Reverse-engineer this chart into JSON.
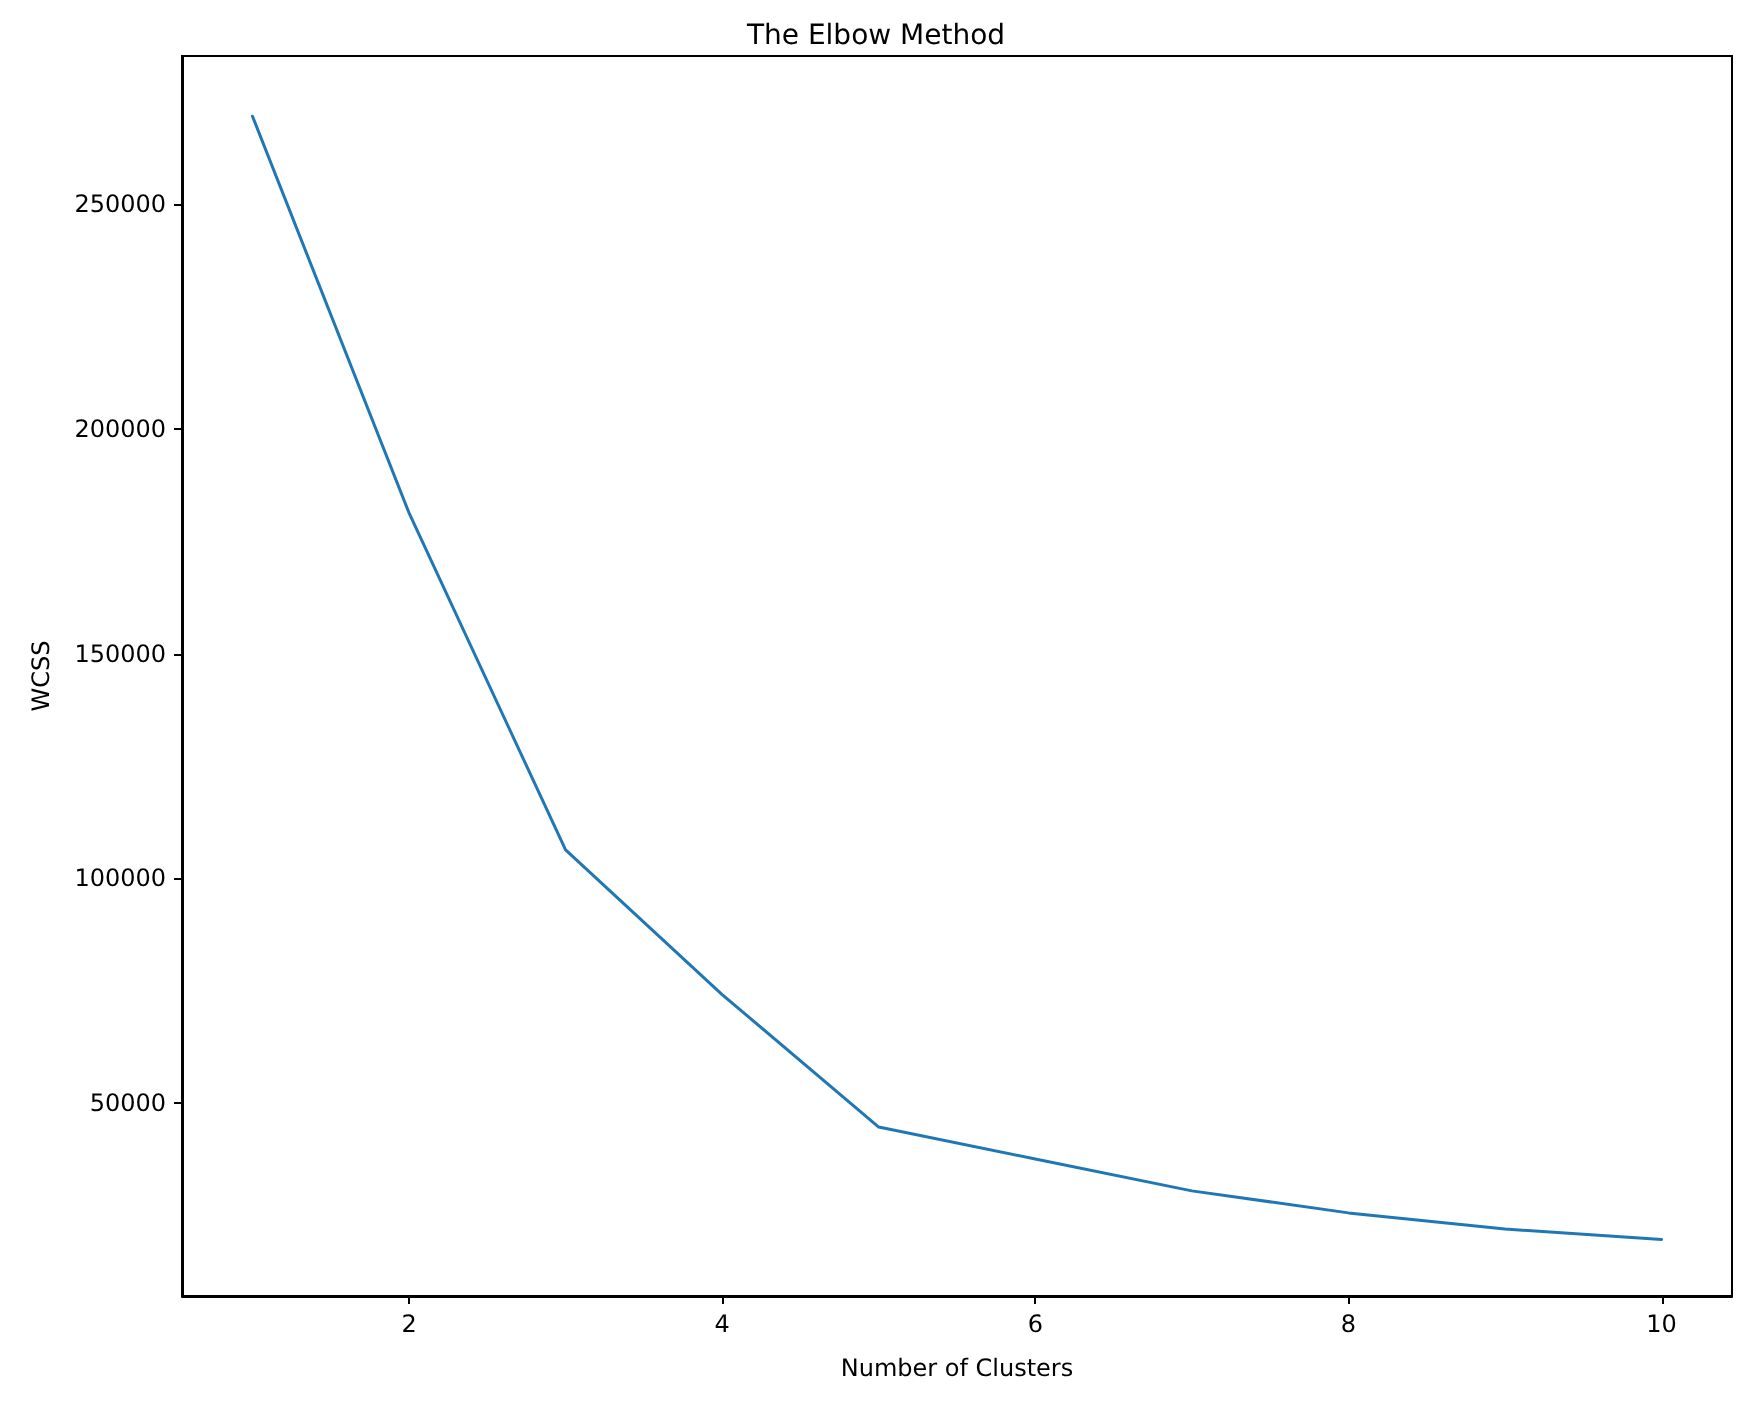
{
  "chart_data": {
    "type": "line",
    "title": "The Elbow Method",
    "xlabel": "Number of Clusters",
    "ylabel": "WCSS",
    "x": [
      1,
      2,
      3,
      4,
      5,
      6,
      7,
      8,
      9,
      10
    ],
    "series": [
      {
        "color": "#1f77b4",
        "values": [
          269600,
          181300,
          106300,
          74100,
          44600,
          37500,
          30400,
          25500,
          21900,
          19600
        ]
      }
    ],
    "xlim": [
      0.55,
      10.45
    ],
    "ylim": [
      7000,
      283000
    ],
    "xticks": [
      2,
      4,
      6,
      8,
      10
    ],
    "yticks": [
      50000,
      100000,
      150000,
      200000,
      250000
    ],
    "grid": false,
    "marker": "none",
    "line_style": "solid"
  }
}
